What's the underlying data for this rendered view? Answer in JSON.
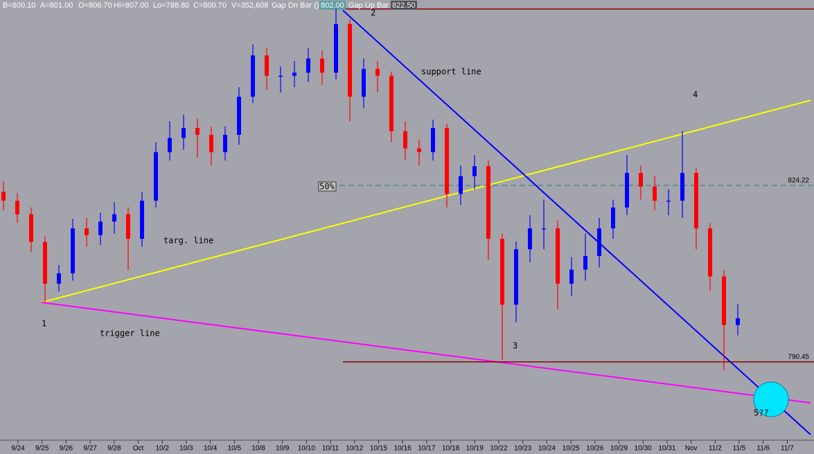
{
  "chart_data": {
    "type": "candlestick",
    "header": [
      "B=800.10",
      "A=801.00",
      "O=806.70",
      "Hi=807.00",
      "Lo=788.80",
      "C=800.70",
      "V=352,608",
      "Gap Dn Bar ()",
      "802.00",
      "Gap Up Bar ()",
      "822.50"
    ],
    "annotations": [
      "1",
      "2",
      "3",
      "4",
      "5??",
      "support line",
      "targ. line",
      "trigger line",
      "50%"
    ],
    "levels": [
      824.22,
      790.45
    ],
    "date_labels": [
      "9/24",
      "9/25",
      "9/26",
      "9/27",
      "9/28",
      "Oct",
      "10/2",
      "10/3",
      "10/4",
      "10/5",
      "10/8",
      "10/9",
      "10/10",
      "10/11",
      "10/12",
      "10/15",
      "10/16",
      "10/17",
      "10/18",
      "10/19",
      "10/22",
      "10/23",
      "10/24",
      "10/25",
      "10/26",
      "10/29",
      "10/30",
      "10/31",
      "Nov",
      "11/2",
      "11/5",
      "11/6",
      "11/7"
    ],
    "ylim": [
      775.6,
      859.7
    ],
    "up_color": "#0000ff",
    "down_color": "#ff0000",
    "open": [
      823.0,
      821.3,
      818.7,
      813.4,
      805.4,
      807.4,
      816.0,
      814.7,
      817.3,
      818.7,
      814.0,
      821.3,
      830.6,
      833.3,
      835.2,
      833.9,
      830.6,
      833.9,
      841.2,
      849.1,
      845.2,
      845.2,
      845.8,
      848.5,
      845.8,
      855.1,
      841.2,
      846.5,
      845.2,
      834.6,
      831.3,
      830.6,
      835.2,
      822.6,
      826.0,
      827.9,
      814.0,
      801.4,
      812.0,
      816.0,
      816.0,
      805.4,
      808.1,
      810.7,
      816.0,
      820.0,
      826.6,
      824.0,
      821.3,
      821.3,
      826.6,
      816.0,
      806.8,
      797.5
    ],
    "high": [
      825.0,
      822.8,
      820.0,
      814.5,
      809.0,
      817.8,
      818.0,
      819.0,
      821.0,
      820.0,
      823.0,
      832.5,
      836.5,
      837.8,
      837.0,
      835.5,
      835.5,
      843.0,
      851.2,
      850.5,
      847.0,
      848.0,
      850.5,
      850.0,
      858.0,
      856.0,
      848.5,
      848.0,
      846.0,
      836.5,
      833.0,
      836.8,
      836.0,
      828.0,
      830.0,
      829.0,
      815.0,
      813.5,
      818.5,
      821.5,
      817.5,
      810.5,
      815.0,
      818.0,
      821.5,
      830.0,
      828.0,
      826.0,
      823.5,
      834.6,
      827.5,
      817.0,
      808.0,
      801.5
    ],
    "low": [
      819.5,
      817.0,
      811.5,
      801.8,
      803.9,
      806.0,
      812.5,
      812.8,
      815.0,
      808.0,
      812.5,
      820.0,
      829.0,
      831.0,
      829.5,
      828.0,
      829.0,
      832.0,
      840.0,
      842.5,
      842.0,
      843.0,
      844.0,
      843.5,
      844.5,
      836.5,
      839.0,
      842.0,
      832.5,
      829.0,
      828.0,
      829.0,
      820.0,
      820.5,
      823.5,
      810.0,
      790.8,
      798.0,
      809.5,
      812.0,
      800.5,
      803.0,
      806.0,
      808.5,
      814.0,
      818.5,
      821.5,
      819.5,
      818.5,
      818.0,
      812.0,
      804.0,
      788.9,
      795.5
    ],
    "close": [
      821.3,
      818.7,
      813.4,
      805.4,
      807.4,
      816.0,
      814.7,
      817.3,
      818.7,
      814.0,
      821.3,
      830.6,
      833.3,
      835.2,
      833.9,
      830.6,
      833.9,
      841.2,
      849.1,
      845.2,
      845.2,
      845.8,
      848.5,
      845.8,
      855.1,
      841.2,
      846.5,
      845.2,
      834.6,
      831.3,
      830.6,
      835.2,
      822.6,
      826.0,
      827.9,
      814.0,
      801.4,
      812.0,
      816.0,
      816.0,
      805.4,
      808.1,
      810.7,
      816.0,
      820.0,
      826.6,
      824.0,
      821.3,
      821.3,
      826.6,
      816.0,
      806.8,
      797.5,
      798.8
    ]
  }
}
